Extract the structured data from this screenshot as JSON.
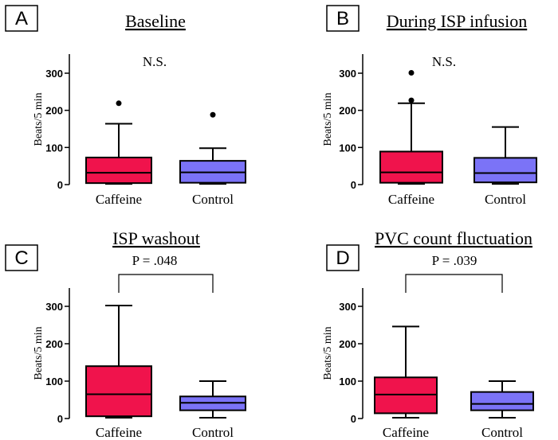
{
  "chart_data": [
    {
      "type": "box",
      "panel": "A",
      "title": "Baseline",
      "ylabel": "Beats/5 min",
      "ylim": [
        0,
        350
      ],
      "yticks": [
        0,
        100,
        200,
        300
      ],
      "ytick_labels": [
        "0",
        "100",
        "200",
        "300"
      ],
      "annotation": "N.S.",
      "significance_bracket": false,
      "categories": [
        "Caffeine",
        "Control"
      ],
      "boxes": [
        {
          "category": "Caffeine",
          "min": 2,
          "q1": 4,
          "median": 32,
          "q3": 73,
          "max": 164,
          "outliers": [
            219
          ],
          "color": "#f0134c"
        },
        {
          "category": "Control",
          "min": 2,
          "q1": 5,
          "median": 33,
          "q3": 64,
          "max": 98,
          "outliers": [
            188
          ],
          "color": "#7b73f7"
        }
      ]
    },
    {
      "type": "box",
      "panel": "B",
      "title": "During ISP infusion",
      "ylabel": "Beats/5 min",
      "ylim": [
        0,
        350
      ],
      "yticks": [
        0,
        100,
        200,
        300
      ],
      "ytick_labels": [
        "0",
        "100",
        "200",
        "300"
      ],
      "annotation": "N.S.",
      "significance_bracket": false,
      "categories": [
        "Caffeine",
        "Control"
      ],
      "boxes": [
        {
          "category": "Caffeine",
          "min": 2,
          "q1": 5,
          "median": 33,
          "q3": 89,
          "max": 219,
          "outliers": [
            227,
            301
          ],
          "color": "#f0134c"
        },
        {
          "category": "Control",
          "min": 2,
          "q1": 6,
          "median": 31,
          "q3": 72,
          "max": 155,
          "outliers": [],
          "color": "#7b73f7"
        }
      ]
    },
    {
      "type": "box",
      "panel": "C",
      "title": "ISP washout",
      "ylabel": "Beats/5 min",
      "ylim": [
        0,
        350
      ],
      "yticks": [
        0,
        100,
        200,
        300
      ],
      "ytick_labels": [
        "0",
        "100",
        "200",
        "300"
      ],
      "annotation": "P = .048",
      "significance_bracket": true,
      "categories": [
        "Caffeine",
        "Control"
      ],
      "boxes": [
        {
          "category": "Caffeine",
          "min": 2,
          "q1": 6,
          "median": 65,
          "q3": 140,
          "max": 302,
          "outliers": [],
          "color": "#f0134c"
        },
        {
          "category": "Control",
          "min": 2,
          "q1": 22,
          "median": 42,
          "q3": 59,
          "max": 100,
          "outliers": [],
          "color": "#7b73f7"
        }
      ]
    },
    {
      "type": "box",
      "panel": "D",
      "title": "PVC count fluctuation",
      "ylabel": "Beats/5 min",
      "ylim": [
        0,
        350
      ],
      "yticks": [
        0,
        100,
        200,
        300
      ],
      "ytick_labels": [
        "0",
        "100",
        "200",
        "300"
      ],
      "annotation": "P = .039",
      "significance_bracket": true,
      "categories": [
        "Caffeine",
        "Control"
      ],
      "boxes": [
        {
          "category": "Caffeine",
          "min": 2,
          "q1": 14,
          "median": 64,
          "q3": 110,
          "max": 246,
          "outliers": [],
          "color": "#f0134c"
        },
        {
          "category": "Control",
          "min": 2,
          "q1": 22,
          "median": 39,
          "q3": 71,
          "max": 100,
          "outliers": [],
          "color": "#7b73f7"
        }
      ]
    }
  ]
}
